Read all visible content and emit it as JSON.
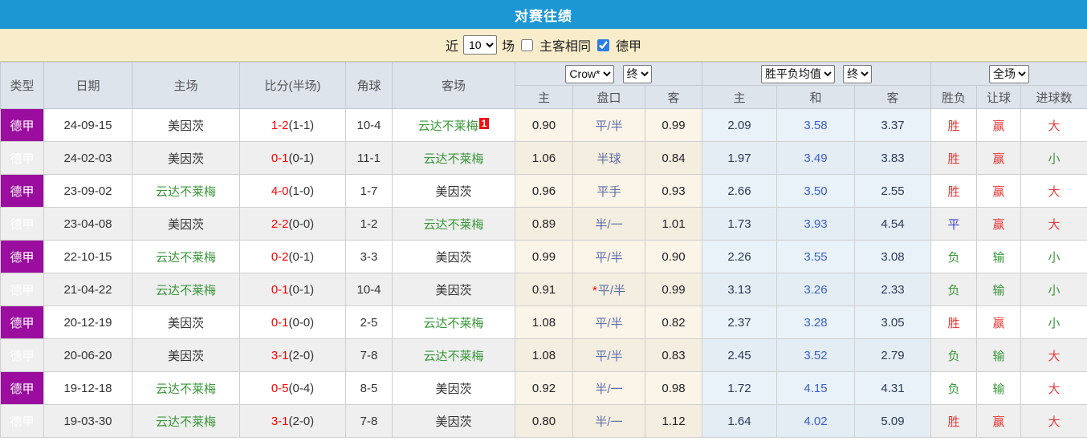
{
  "title": "对赛往绩",
  "colors": {
    "title_bar": "#1c97d4",
    "filter_bar": "#f8ecca",
    "league_column": "#9a0d9e",
    "win_red": "#e83b3b",
    "lose_green": "#389738",
    "draw_blue": "#4747d1",
    "score_red": "#ff0000",
    "handicap_slate": "#5e6fa6",
    "avg_draw_blue": "#3a5fc8",
    "checkbox_accent": "#2b7de9"
  },
  "controls": {
    "recent_label": "近",
    "count_value": "10",
    "games_label": "场",
    "same_venue_label": "主客相同",
    "same_venue_checked": false,
    "league_label": "德甲",
    "league_checked": true
  },
  "table": {
    "selects": {
      "bookmaker": "Crow*",
      "bookmaker_time": "终",
      "avg_type": "胜平负均值",
      "avg_time": "终",
      "scope": "全场"
    },
    "headers": {
      "type": "类型",
      "date": "日期",
      "home": "主场",
      "score": "比分(半场)",
      "corners": "角球",
      "away": "客场",
      "asia_home": "主",
      "asia_handicap": "盘口",
      "asia_away": "客",
      "avg_home": "主",
      "avg_draw": "和",
      "avg_away": "客",
      "result": "胜负",
      "handicap_result": "让球",
      "goals": "进球数"
    },
    "rows": [
      {
        "league": "德甲",
        "date": "24-09-15",
        "home": "美因茨",
        "home_color": "dark",
        "score": "1-2",
        "half": "(1-1)",
        "corners": "10-4",
        "away": "云达不莱梅",
        "away_color": "green",
        "away_badge": "1",
        "asia": [
          "0.90",
          "平/半",
          "0.99"
        ],
        "asia_star": false,
        "avg": [
          "2.09",
          "3.58",
          "3.37"
        ],
        "result": "胜",
        "result_color": "red",
        "let": "赢",
        "let_color": "red",
        "goal": "大",
        "goal_color": "red"
      },
      {
        "league": "德甲",
        "date": "24-02-03",
        "home": "美因茨",
        "home_color": "dark",
        "score": "0-1",
        "half": "(0-1)",
        "corners": "11-1",
        "away": "云达不莱梅",
        "away_color": "green",
        "away_badge": "",
        "asia": [
          "1.06",
          "半球",
          "0.84"
        ],
        "asia_star": false,
        "avg": [
          "1.97",
          "3.49",
          "3.83"
        ],
        "result": "胜",
        "result_color": "red",
        "let": "赢",
        "let_color": "red",
        "goal": "小",
        "goal_color": "green"
      },
      {
        "league": "德甲",
        "date": "23-09-02",
        "home": "云达不莱梅",
        "home_color": "green",
        "score": "4-0",
        "half": "(1-0)",
        "corners": "1-7",
        "away": "美因茨",
        "away_color": "dark",
        "away_badge": "",
        "asia": [
          "0.96",
          "平手",
          "0.93"
        ],
        "asia_star": false,
        "avg": [
          "2.66",
          "3.50",
          "2.55"
        ],
        "result": "胜",
        "result_color": "red",
        "let": "赢",
        "let_color": "red",
        "goal": "大",
        "goal_color": "red"
      },
      {
        "league": "德甲",
        "date": "23-04-08",
        "home": "美因茨",
        "home_color": "dark",
        "score": "2-2",
        "half": "(0-0)",
        "corners": "1-2",
        "away": "云达不莱梅",
        "away_color": "green",
        "away_badge": "",
        "asia": [
          "0.89",
          "半/一",
          "1.01"
        ],
        "asia_star": false,
        "avg": [
          "1.73",
          "3.93",
          "4.54"
        ],
        "result": "平",
        "result_color": "blue",
        "let": "赢",
        "let_color": "red",
        "goal": "大",
        "goal_color": "red"
      },
      {
        "league": "德甲",
        "date": "22-10-15",
        "home": "云达不莱梅",
        "home_color": "green",
        "score": "0-2",
        "half": "(0-1)",
        "corners": "3-3",
        "away": "美因茨",
        "away_color": "dark",
        "away_badge": "",
        "asia": [
          "0.99",
          "平/半",
          "0.90"
        ],
        "asia_star": false,
        "avg": [
          "2.26",
          "3.55",
          "3.08"
        ],
        "result": "负",
        "result_color": "green",
        "let": "输",
        "let_color": "green",
        "goal": "小",
        "goal_color": "green"
      },
      {
        "league": "德甲",
        "date": "21-04-22",
        "home": "云达不莱梅",
        "home_color": "green",
        "score": "0-1",
        "half": "(0-1)",
        "corners": "10-4",
        "away": "美因茨",
        "away_color": "dark",
        "away_badge": "",
        "asia": [
          "0.91",
          "平/半",
          "0.99"
        ],
        "asia_star": true,
        "avg": [
          "3.13",
          "3.26",
          "2.33"
        ],
        "result": "负",
        "result_color": "green",
        "let": "输",
        "let_color": "green",
        "goal": "小",
        "goal_color": "green"
      },
      {
        "league": "德甲",
        "date": "20-12-19",
        "home": "美因茨",
        "home_color": "dark",
        "score": "0-1",
        "half": "(0-0)",
        "corners": "2-5",
        "away": "云达不莱梅",
        "away_color": "green",
        "away_badge": "",
        "asia": [
          "1.08",
          "平/半",
          "0.82"
        ],
        "asia_star": false,
        "avg": [
          "2.37",
          "3.28",
          "3.05"
        ],
        "result": "胜",
        "result_color": "red",
        "let": "赢",
        "let_color": "red",
        "goal": "小",
        "goal_color": "green"
      },
      {
        "league": "德甲",
        "date": "20-06-20",
        "home": "美因茨",
        "home_color": "dark",
        "score": "3-1",
        "half": "(2-0)",
        "corners": "7-8",
        "away": "云达不莱梅",
        "away_color": "green",
        "away_badge": "",
        "asia": [
          "1.08",
          "平/半",
          "0.83"
        ],
        "asia_star": false,
        "avg": [
          "2.45",
          "3.52",
          "2.79"
        ],
        "result": "负",
        "result_color": "green",
        "let": "输",
        "let_color": "green",
        "goal": "大",
        "goal_color": "red"
      },
      {
        "league": "德甲",
        "date": "19-12-18",
        "home": "云达不莱梅",
        "home_color": "green",
        "score": "0-5",
        "half": "(0-4)",
        "corners": "8-5",
        "away": "美因茨",
        "away_color": "dark",
        "away_badge": "",
        "asia": [
          "0.92",
          "半/一",
          "0.98"
        ],
        "asia_star": false,
        "avg": [
          "1.72",
          "4.15",
          "4.31"
        ],
        "result": "负",
        "result_color": "green",
        "let": "输",
        "let_color": "green",
        "goal": "大",
        "goal_color": "red"
      },
      {
        "league": "德甲",
        "date": "19-03-30",
        "home": "云达不莱梅",
        "home_color": "green",
        "score": "3-1",
        "half": "(2-0)",
        "corners": "7-8",
        "away": "美因茨",
        "away_color": "dark",
        "away_badge": "",
        "asia": [
          "0.80",
          "半/一",
          "1.12"
        ],
        "asia_star": false,
        "avg": [
          "1.64",
          "4.02",
          "5.09"
        ],
        "result": "胜",
        "result_color": "red",
        "let": "赢",
        "let_color": "red",
        "goal": "大",
        "goal_color": "red"
      }
    ]
  }
}
